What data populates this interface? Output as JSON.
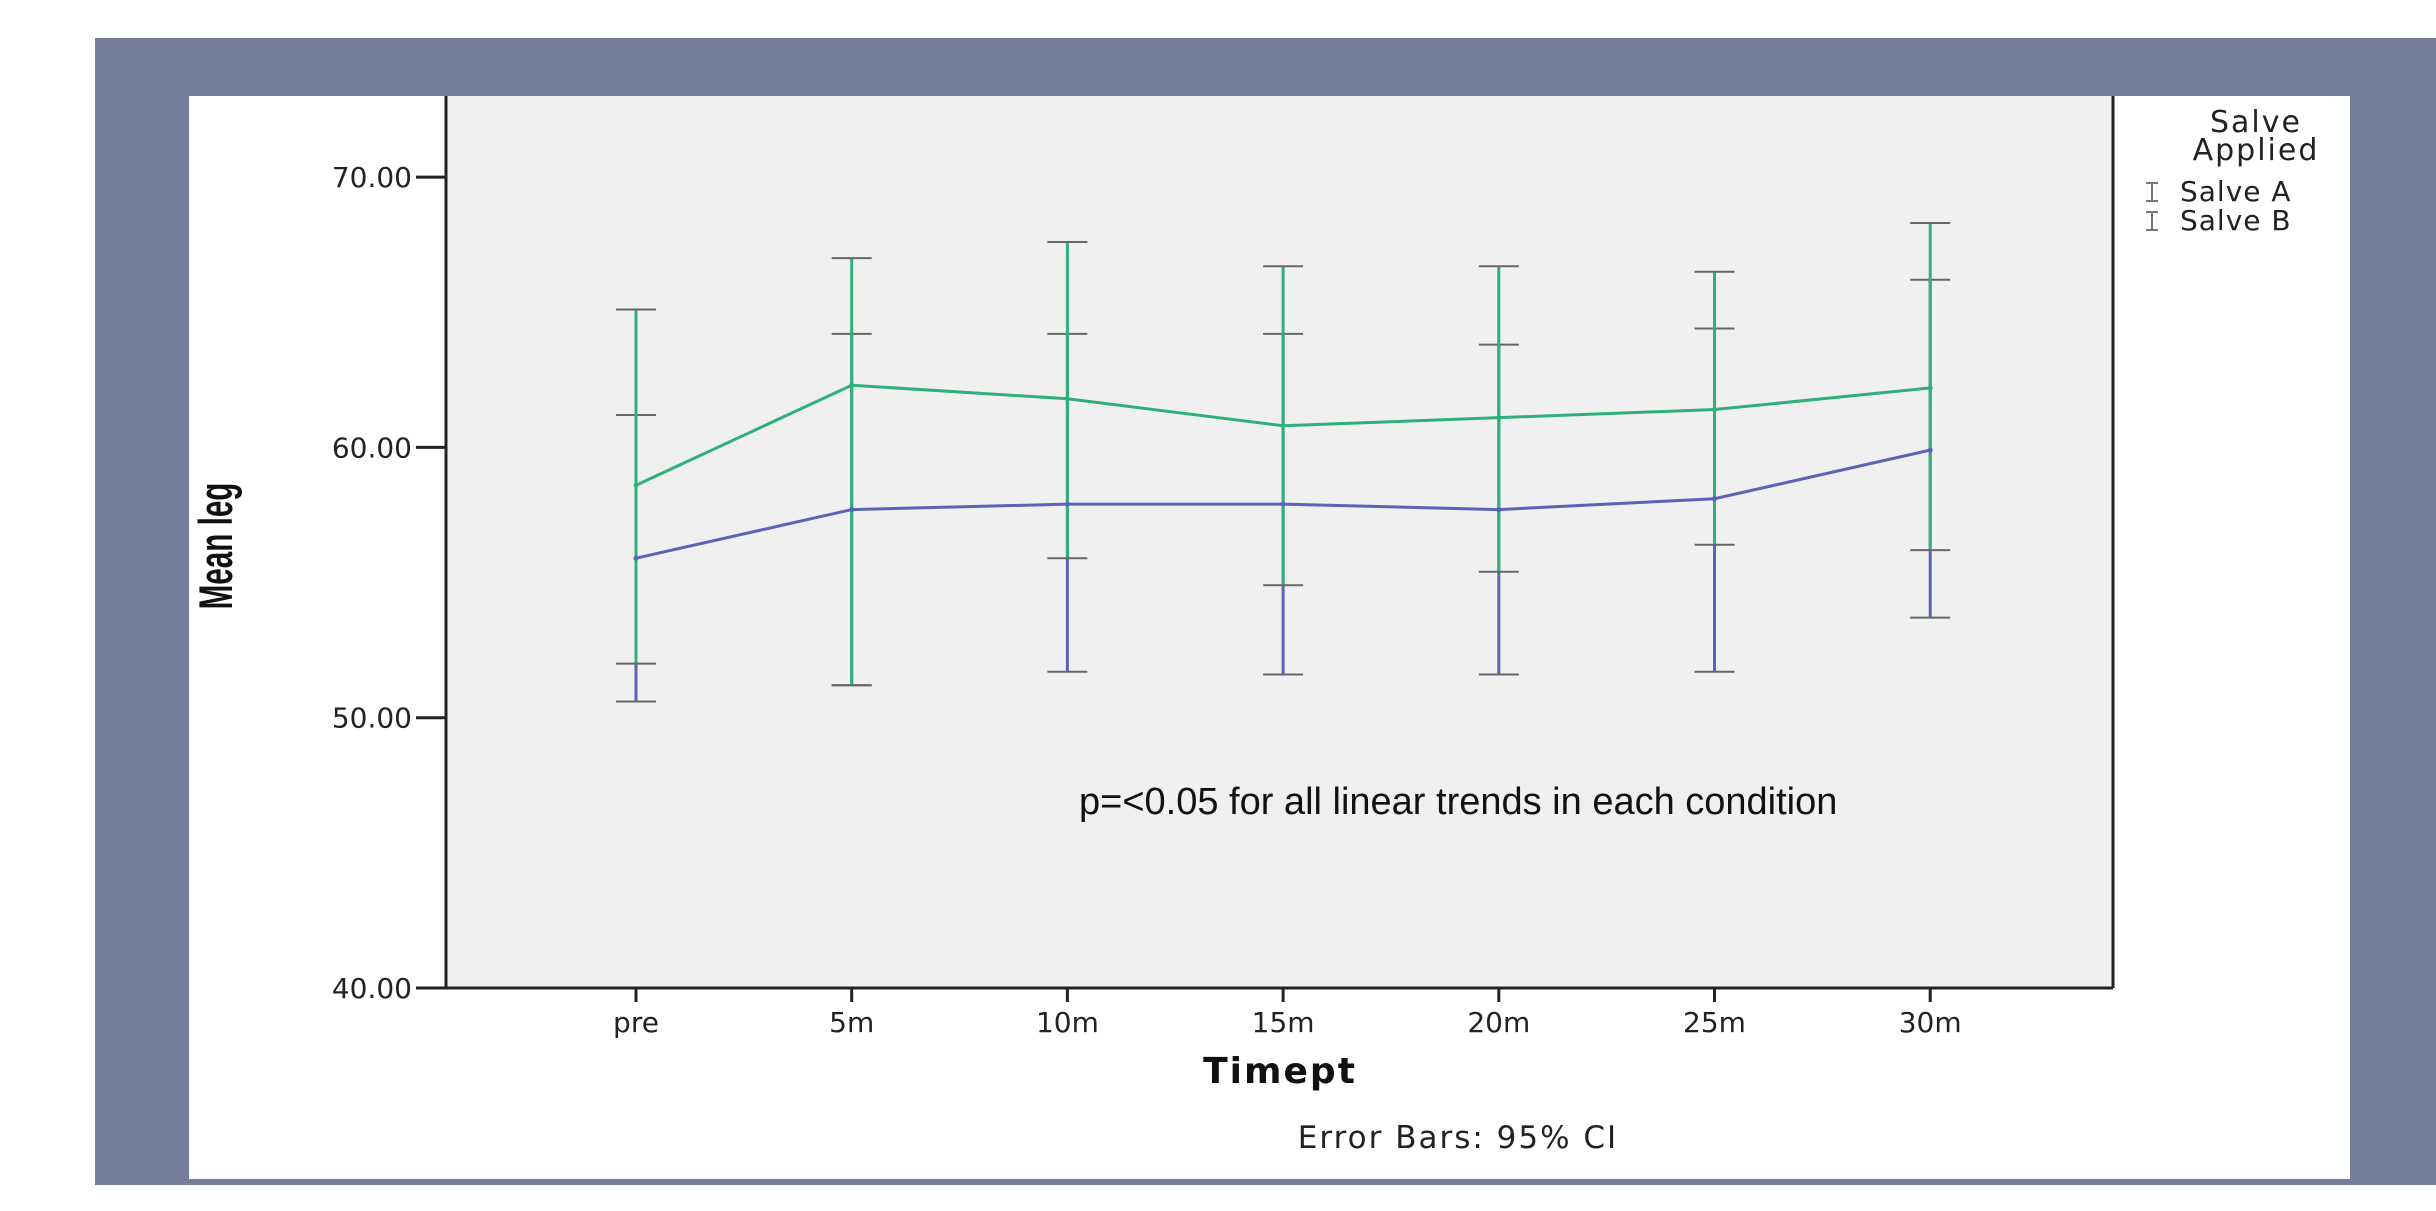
{
  "colors": {
    "frame": "#737e9a",
    "plot_background": "#f0f0f0",
    "salve_a": "#5a63b8",
    "salve_b": "#2fb07a",
    "error_bar_cap": "#666666"
  },
  "chart_data": {
    "type": "line",
    "title": "",
    "xlabel": "Timept",
    "ylabel": "Mean leg",
    "footnote": "Error Bars: 95% CI",
    "annotation": "p=<0.05 for all linear trends in each condition",
    "categories": [
      "pre",
      "5m",
      "10m",
      "15m",
      "20m",
      "25m",
      "30m"
    ],
    "ylim": [
      40,
      73
    ],
    "yticks": [
      40,
      50,
      60,
      70
    ],
    "ytick_labels": [
      "40.00",
      "50.00",
      "60.00",
      "70.00"
    ],
    "grid": false,
    "legend": {
      "title_lines": [
        "Salve",
        "Applied"
      ],
      "placement": "right",
      "labels": [
        "Salve A",
        "Salve B"
      ]
    },
    "series": [
      {
        "name": "Salve A",
        "values": [
          55.9,
          57.7,
          57.9,
          57.9,
          57.7,
          58.1,
          59.9
        ],
        "ci_low": [
          50.6,
          51.2,
          51.7,
          51.6,
          51.6,
          51.7,
          53.7
        ],
        "ci_high": [
          61.2,
          64.2,
          64.2,
          64.2,
          63.8,
          64.4,
          66.2
        ]
      },
      {
        "name": "Salve B",
        "values": [
          58.6,
          62.3,
          61.8,
          60.8,
          61.1,
          61.4,
          62.2
        ],
        "ci_low": [
          52.0,
          51.2,
          55.9,
          54.9,
          55.4,
          56.4,
          56.2
        ],
        "ci_high": [
          65.1,
          67.0,
          67.6,
          66.7,
          66.7,
          66.5,
          68.3
        ]
      }
    ]
  }
}
